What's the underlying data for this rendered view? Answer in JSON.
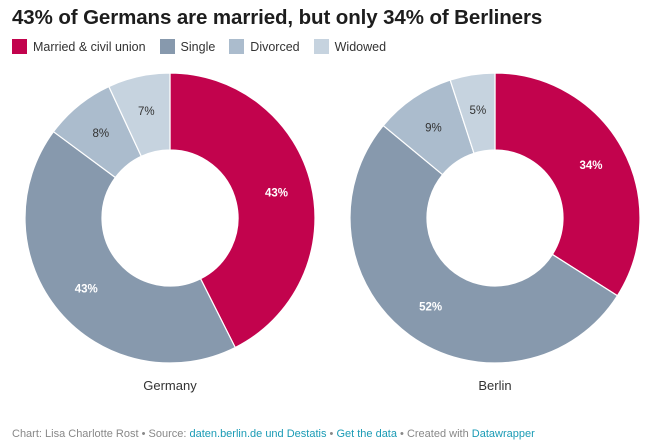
{
  "title": "43% of Germans are married, but only 34% of Berliners",
  "legend": [
    {
      "label": "Married & civil union",
      "color": "#c2034d"
    },
    {
      "label": "Single",
      "color": "#8799ad"
    },
    {
      "label": "Divorced",
      "color": "#abbccd"
    },
    {
      "label": "Widowed",
      "color": "#c6d3df"
    }
  ],
  "chart_data": [
    {
      "type": "pie",
      "donut": true,
      "label": "Germany",
      "categories": [
        "Married & civil union",
        "Single",
        "Divorced",
        "Widowed"
      ],
      "values": [
        43,
        43,
        8,
        7
      ],
      "value_labels": [
        "43%",
        "43%",
        "8%",
        "7%"
      ],
      "colors": [
        "#c2034d",
        "#8799ad",
        "#abbccd",
        "#c6d3df"
      ]
    },
    {
      "type": "pie",
      "donut": true,
      "label": "Berlin",
      "categories": [
        "Married & civil union",
        "Single",
        "Divorced",
        "Widowed"
      ],
      "values": [
        34,
        52,
        9,
        5
      ],
      "value_labels": [
        "34%",
        "52%",
        "9%",
        "5%"
      ],
      "colors": [
        "#c2034d",
        "#8799ad",
        "#abbccd",
        "#c6d3df"
      ]
    }
  ],
  "footer": {
    "credit": "Chart: Lisa Charlotte Rost • Source: ",
    "source_link": "daten.berlin.de und Destatis",
    "sep1": " • ",
    "get_data": "Get the data",
    "sep2": " • Created with ",
    "tool": "Datawrapper"
  }
}
